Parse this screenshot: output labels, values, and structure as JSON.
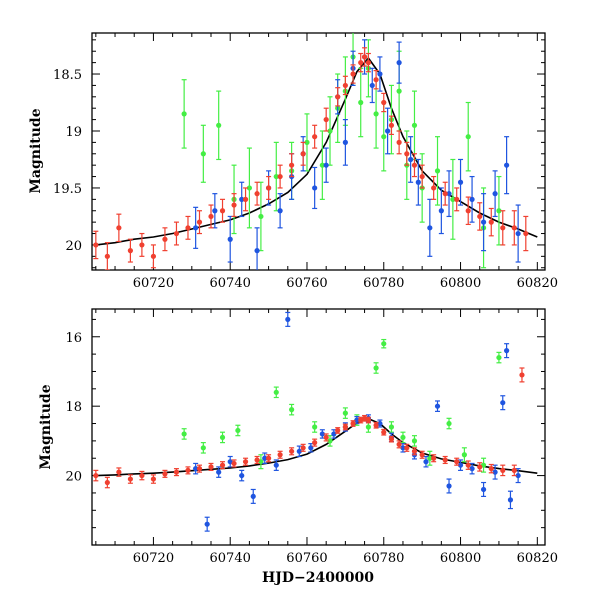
{
  "chart_data": [
    {
      "type": "scatter",
      "panel": "top",
      "xlabel": "",
      "ylabel": "Magnitude",
      "xlim": [
        60704,
        60822
      ],
      "ylim": [
        20.22,
        18.14
      ],
      "y_inverted": true,
      "xticks": [
        60720,
        60740,
        60760,
        60780,
        60800,
        60820
      ],
      "yticks": [
        18.5,
        19,
        19.5,
        20
      ],
      "grid": false,
      "colors": {
        "green": "#44ee44",
        "blue": "#1f55e0",
        "red": "#f04030",
        "model": "#000000"
      },
      "model_curve": {
        "x": [
          60705,
          60710,
          60715,
          60720,
          60725,
          60730,
          60735,
          60740,
          60745,
          60750,
          60755,
          60760,
          60765,
          60770,
          60773,
          60776,
          60779,
          60782,
          60785,
          60790,
          60795,
          60800,
          60805,
          60810,
          60815,
          60820
        ],
        "y": [
          20.0,
          19.98,
          19.95,
          19.93,
          19.9,
          19.86,
          19.82,
          19.78,
          19.72,
          19.64,
          19.54,
          19.38,
          19.1,
          18.72,
          18.48,
          18.36,
          18.5,
          18.8,
          19.05,
          19.35,
          19.52,
          19.62,
          19.72,
          19.8,
          19.86,
          19.93
        ]
      },
      "series": [
        {
          "color": "green",
          "x": [
            60728,
            60733,
            60737,
            60741,
            60745,
            60748,
            60752,
            60756,
            60760,
            60764,
            60766,
            60768,
            60770,
            60772,
            60774,
            60776,
            60778,
            60780,
            60782,
            60784,
            60786,
            60788,
            60790,
            60794,
            60798,
            60802,
            60806,
            60810
          ],
          "y": [
            18.85,
            19.2,
            18.95,
            19.6,
            19.5,
            19.75,
            19.4,
            19.35,
            19.1,
            19.3,
            19.0,
            18.8,
            18.65,
            18.35,
            18.75,
            18.45,
            18.85,
            19.05,
            18.9,
            18.65,
            19.3,
            18.95,
            19.5,
            19.35,
            19.6,
            19.05,
            19.85,
            19.7
          ],
          "err": [
            0.3,
            0.25,
            0.3,
            0.3,
            0.35,
            0.3,
            0.3,
            0.25,
            0.25,
            0.3,
            0.3,
            0.3,
            0.3,
            0.25,
            0.3,
            0.25,
            0.3,
            0.3,
            0.3,
            0.35,
            0.3,
            0.3,
            0.3,
            0.3,
            0.35,
            0.3,
            0.35,
            0.3
          ]
        },
        {
          "color": "blue",
          "x": [
            60731,
            60736,
            60740,
            60743,
            60747,
            60750,
            60753,
            60756,
            60759,
            60762,
            60765,
            60768,
            60770,
            60772,
            60775,
            60777,
            60779,
            60781,
            60784,
            60787,
            60789,
            60792,
            60795,
            60797,
            60800,
            60803,
            60806,
            60809,
            60812,
            60815
          ],
          "y": [
            19.85,
            19.7,
            19.95,
            19.6,
            20.05,
            19.5,
            19.7,
            19.4,
            19.2,
            19.5,
            19.3,
            18.7,
            19.1,
            18.45,
            18.35,
            18.6,
            18.5,
            19.0,
            18.4,
            19.25,
            19.45,
            19.85,
            19.7,
            19.55,
            19.45,
            19.6,
            19.8,
            19.55,
            19.3,
            19.9
          ],
          "err": [
            0.18,
            0.15,
            0.2,
            0.15,
            0.2,
            0.15,
            0.15,
            0.2,
            0.15,
            0.18,
            0.15,
            0.15,
            0.2,
            0.15,
            0.15,
            0.15,
            0.15,
            0.2,
            0.18,
            0.2,
            0.2,
            0.25,
            0.2,
            0.2,
            0.2,
            0.2,
            0.25,
            0.2,
            0.25,
            0.25
          ]
        },
        {
          "color": "red",
          "x": [
            60705,
            60708,
            60711,
            60714,
            60717,
            60720,
            60723,
            60726,
            60729,
            60732,
            60735,
            60738,
            60741,
            60744,
            60747,
            60750,
            60753,
            60756,
            60759,
            60762,
            60765,
            60768,
            60770,
            60772,
            60774,
            60775,
            60776,
            60778,
            60780,
            60782,
            60784,
            60786,
            60788,
            60790,
            60793,
            60796,
            60799,
            60802,
            60805,
            60808,
            60811,
            60814,
            60817
          ],
          "y": [
            20.0,
            20.1,
            19.85,
            20.05,
            20.0,
            20.1,
            19.95,
            19.9,
            19.85,
            19.8,
            19.75,
            19.7,
            19.65,
            19.6,
            19.55,
            19.5,
            19.4,
            19.3,
            19.2,
            19.05,
            18.9,
            18.7,
            18.6,
            18.5,
            18.4,
            18.35,
            18.4,
            18.55,
            18.75,
            18.95,
            19.1,
            19.2,
            19.3,
            19.4,
            19.5,
            19.55,
            19.6,
            19.7,
            19.75,
            19.8,
            19.85,
            19.85,
            19.9
          ],
          "err": [
            0.12,
            0.12,
            0.12,
            0.1,
            0.1,
            0.1,
            0.1,
            0.1,
            0.1,
            0.1,
            0.1,
            0.1,
            0.1,
            0.1,
            0.1,
            0.1,
            0.1,
            0.1,
            0.1,
            0.1,
            0.1,
            0.08,
            0.08,
            0.08,
            0.08,
            0.08,
            0.08,
            0.08,
            0.08,
            0.08,
            0.1,
            0.1,
            0.1,
            0.1,
            0.1,
            0.1,
            0.1,
            0.12,
            0.12,
            0.12,
            0.15,
            0.15,
            0.15
          ]
        }
      ]
    },
    {
      "type": "scatter",
      "panel": "bottom",
      "xlabel": "HJD−2400000",
      "ylabel": "Magnitude",
      "xlim": [
        60704,
        60822
      ],
      "ylim": [
        22.0,
        15.2
      ],
      "y_inverted": true,
      "xticks": [
        60720,
        60740,
        60760,
        60780,
        60800,
        60820
      ],
      "yticks": [
        16,
        18,
        20
      ],
      "grid": false,
      "colors": {
        "green": "#44ee44",
        "blue": "#1f55e0",
        "red": "#f04030",
        "model": "#000000"
      },
      "model_curve": {
        "x": [
          60705,
          60710,
          60715,
          60720,
          60725,
          60730,
          60735,
          60740,
          60745,
          60750,
          60755,
          60760,
          60765,
          60770,
          60773,
          60776,
          60779,
          60782,
          60785,
          60790,
          60795,
          60800,
          60805,
          60810,
          60815,
          60820
        ],
        "y": [
          20.0,
          19.98,
          19.95,
          19.93,
          19.9,
          19.86,
          19.82,
          19.78,
          19.72,
          19.64,
          19.54,
          19.38,
          19.1,
          18.72,
          18.48,
          18.36,
          18.5,
          18.8,
          19.05,
          19.35,
          19.52,
          19.62,
          19.72,
          19.8,
          19.86,
          19.93
        ]
      },
      "series": [
        {
          "color": "green",
          "x": [
            60728,
            60733,
            60738,
            60742,
            60748,
            60752,
            60756,
            60762,
            60766,
            60770,
            60773,
            60776,
            60778,
            60780,
            60782,
            60785,
            60788,
            60792,
            60797,
            60801,
            60806,
            60810
          ],
          "y": [
            18.8,
            19.2,
            18.9,
            18.7,
            19.6,
            17.6,
            18.1,
            18.6,
            19.0,
            18.2,
            18.4,
            18.6,
            16.9,
            16.2,
            18.6,
            18.9,
            19.0,
            19.5,
            18.5,
            19.4,
            19.7,
            16.6
          ],
          "err": [
            0.15,
            0.15,
            0.15,
            0.15,
            0.2,
            0.15,
            0.15,
            0.15,
            0.15,
            0.15,
            0.15,
            0.15,
            0.15,
            0.12,
            0.15,
            0.15,
            0.15,
            0.2,
            0.15,
            0.2,
            0.2,
            0.15
          ]
        },
        {
          "color": "blue",
          "x": [
            60731,
            60734,
            60737,
            60740,
            60743,
            60746,
            60749,
            60752,
            60755,
            60758,
            60761,
            60764,
            60767,
            60770,
            60773,
            60776,
            60779,
            60782,
            60785,
            60788,
            60791,
            60794,
            60797,
            60800,
            60803,
            60806,
            60809,
            60811,
            60812,
            60813,
            60815
          ],
          "y": [
            19.8,
            21.4,
            19.9,
            19.6,
            20.0,
            20.6,
            19.5,
            19.7,
            15.5,
            19.3,
            19.2,
            18.8,
            18.8,
            18.6,
            18.4,
            18.35,
            18.5,
            18.9,
            19.2,
            19.4,
            19.6,
            18.0,
            20.3,
            19.7,
            19.8,
            20.4,
            19.9,
            17.9,
            16.4,
            20.7,
            20.0
          ],
          "err": [
            0.15,
            0.2,
            0.15,
            0.15,
            0.15,
            0.2,
            0.15,
            0.15,
            0.2,
            0.15,
            0.12,
            0.12,
            0.12,
            0.12,
            0.1,
            0.1,
            0.1,
            0.12,
            0.12,
            0.12,
            0.15,
            0.15,
            0.2,
            0.15,
            0.15,
            0.2,
            0.2,
            0.2,
            0.2,
            0.25,
            0.2
          ]
        },
        {
          "color": "red",
          "x": [
            60705,
            60708,
            60711,
            60714,
            60717,
            60720,
            60723,
            60726,
            60729,
            60732,
            60735,
            60738,
            60741,
            60744,
            60747,
            60750,
            60753,
            60756,
            60759,
            60762,
            60765,
            60768,
            60770,
            60772,
            60774,
            60775,
            60776,
            60778,
            60780,
            60782,
            60784,
            60786,
            60788,
            60790,
            60793,
            60796,
            60799,
            60802,
            60805,
            60808,
            60811,
            60814,
            60816
          ],
          "y": [
            20.0,
            20.2,
            19.9,
            20.1,
            20.0,
            20.1,
            19.95,
            19.9,
            19.85,
            19.8,
            19.75,
            19.7,
            19.65,
            19.6,
            19.55,
            19.5,
            19.4,
            19.3,
            19.2,
            19.05,
            18.9,
            18.7,
            18.6,
            18.5,
            18.4,
            18.35,
            18.4,
            18.55,
            18.75,
            18.95,
            19.1,
            19.2,
            19.3,
            19.4,
            19.5,
            19.55,
            19.6,
            19.7,
            19.75,
            19.8,
            19.85,
            19.85,
            17.1
          ],
          "err": [
            0.15,
            0.15,
            0.12,
            0.12,
            0.12,
            0.12,
            0.1,
            0.1,
            0.1,
            0.1,
            0.1,
            0.1,
            0.1,
            0.1,
            0.1,
            0.1,
            0.1,
            0.1,
            0.1,
            0.1,
            0.1,
            0.08,
            0.08,
            0.08,
            0.08,
            0.08,
            0.08,
            0.08,
            0.08,
            0.08,
            0.1,
            0.1,
            0.1,
            0.1,
            0.1,
            0.1,
            0.1,
            0.12,
            0.12,
            0.12,
            0.15,
            0.15,
            0.2
          ]
        }
      ]
    }
  ]
}
